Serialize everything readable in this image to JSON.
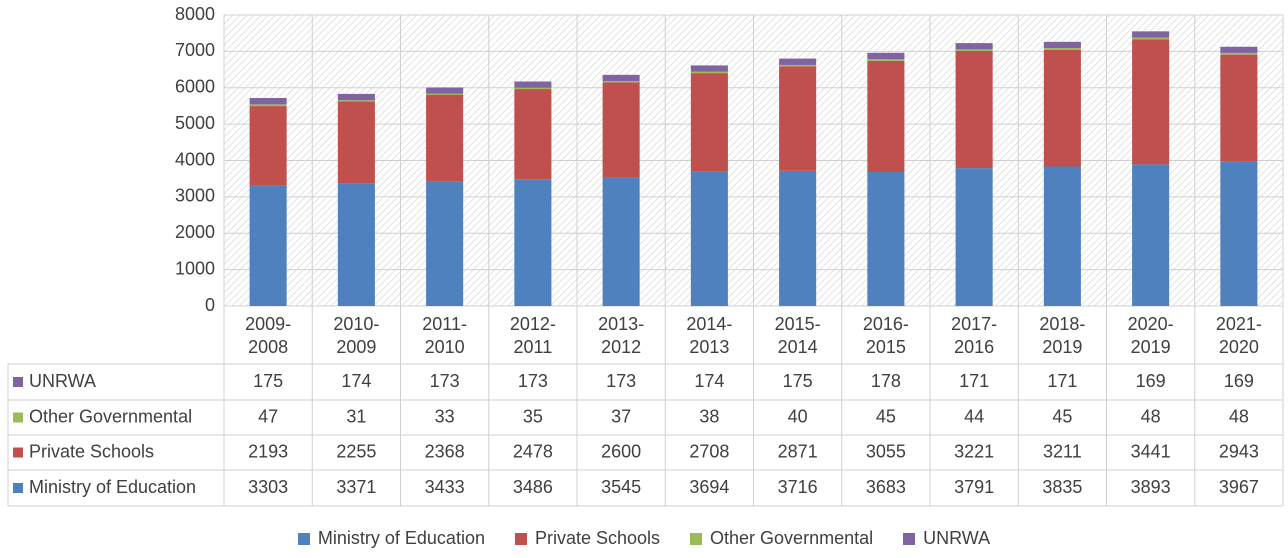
{
  "chart_data": {
    "type": "stacked_bar",
    "categories": [
      "2009-2008",
      "2010-2009",
      "2011-2010",
      "2012-2011",
      "2013-2012",
      "2014-2013",
      "2015-2014",
      "2016-2015",
      "2017-2016",
      "2018-2019",
      "2020-2019",
      "2021-2020"
    ],
    "series": [
      {
        "name": "Ministry of Education",
        "color": "#4e81bd",
        "values": [
          3303,
          3371,
          3433,
          3486,
          3545,
          3694,
          3716,
          3683,
          3791,
          3835,
          3893,
          3967
        ]
      },
      {
        "name": "Private Schools",
        "color": "#c0504d",
        "values": [
          2193,
          2255,
          2368,
          2478,
          2600,
          2708,
          2871,
          3055,
          3221,
          3211,
          3441,
          2943
        ]
      },
      {
        "name": "Other Governmental",
        "color": "#9bbb59",
        "values": [
          47,
          31,
          33,
          35,
          37,
          38,
          40,
          45,
          44,
          45,
          48,
          48
        ]
      },
      {
        "name": "UNRWA",
        "color": "#8064a2",
        "values": [
          175,
          174,
          173,
          173,
          173,
          174,
          175,
          178,
          171,
          171,
          169,
          169
        ]
      }
    ],
    "ylim": [
      0,
      8000
    ],
    "yticks": [
      0,
      1000,
      2000,
      3000,
      4000,
      5000,
      6000,
      7000,
      8000
    ],
    "grid": true,
    "legend": "bottom"
  }
}
